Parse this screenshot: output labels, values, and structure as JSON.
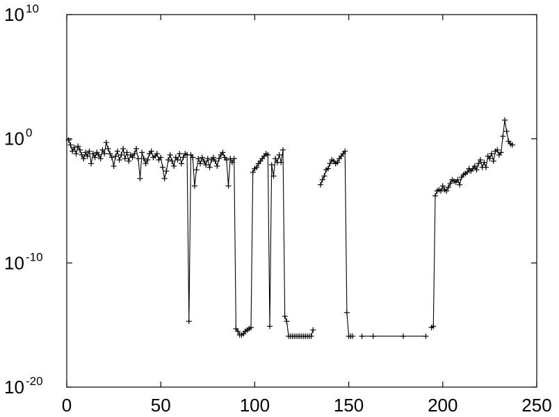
{
  "chart_data": {
    "type": "line",
    "title": "",
    "xlabel": "",
    "ylabel": "",
    "xlim": [
      0,
      250
    ],
    "ylim_exponent": [
      -20,
      10
    ],
    "y_scale": "log",
    "grid": false,
    "legend": "none",
    "marker": "+",
    "colors": {
      "line": "#000000",
      "axes": "#000000",
      "background": "#ffffff"
    },
    "x_ticks": [
      {
        "value": 0,
        "label": "0"
      },
      {
        "value": 50,
        "label": "50"
      },
      {
        "value": 100,
        "label": "100"
      },
      {
        "value": 150,
        "label": "150"
      },
      {
        "value": 200,
        "label": "200"
      },
      {
        "value": 250,
        "label": "250"
      }
    ],
    "y_ticks": [
      {
        "exponent": 10,
        "base": "10",
        "sup": "10"
      },
      {
        "exponent": 0,
        "base": "10",
        "sup": "0"
      },
      {
        "exponent": -10,
        "base": "10",
        "sup": "-10"
      },
      {
        "exponent": -20,
        "base": "10",
        "sup": "-20"
      }
    ],
    "series": [
      {
        "segments": [
          {
            "x": [
              1,
              2,
              3,
              4,
              5,
              6,
              7,
              8,
              9,
              10,
              11,
              12,
              13,
              14,
              15,
              16,
              17,
              18,
              19,
              20,
              21,
              22,
              23,
              24,
              25,
              26,
              27,
              28,
              29,
              30,
              31,
              32,
              33,
              34,
              35,
              36,
              37,
              38,
              39,
              40,
              41,
              42,
              43,
              44,
              45,
              46,
              47,
              48,
              49,
              50,
              51,
              52,
              53,
              54,
              55,
              56,
              57,
              58,
              59,
              60,
              61,
              62,
              63,
              64,
              65,
              66,
              67,
              68,
              69,
              70,
              71,
              72,
              73,
              74,
              75,
              76,
              77,
              78,
              79,
              80,
              81,
              82,
              83,
              84,
              85,
              86,
              87,
              88,
              89,
              90,
              91,
              92,
              93,
              94,
              95,
              96,
              97,
              98,
              99,
              100,
              101,
              102,
              103,
              104,
              105,
              106,
              107,
              108,
              109,
              110,
              111,
              112,
              113,
              114,
              115,
              116,
              117,
              118,
              119,
              120,
              121,
              122,
              123,
              124,
              125,
              126,
              127,
              128,
              129,
              130,
              131
            ],
            "log10_y": [
              -0.1,
              -0.5,
              -1.0,
              -0.7,
              -1.2,
              -0.6,
              -0.9,
              -1.3,
              -1.6,
              -1.1,
              -1.4,
              -1.0,
              -2.0,
              -1.2,
              -1.5,
              -1.1,
              -1.3,
              -1.6,
              -0.9,
              -1.2,
              -0.3,
              -0.8,
              -1.2,
              -1.5,
              -2.2,
              -1.4,
              -1.0,
              -1.7,
              -1.3,
              -0.8,
              -1.6,
              -1.1,
              -1.8,
              -1.3,
              -1.5,
              -1.2,
              -0.8,
              -1.6,
              -3.2,
              -1.1,
              -1.6,
              -2.0,
              -1.7,
              -1.2,
              -1.0,
              -1.5,
              -1.4,
              -1.2,
              -1.7,
              -1.5,
              -2.3,
              -3.2,
              -2.6,
              -1.7,
              -1.3,
              -1.8,
              -2.2,
              -1.5,
              -1.7,
              -1.2,
              -2.0,
              -1.5,
              -1.2,
              -1.3,
              -14.7,
              -1.3,
              -1.5,
              -3.8,
              -2.5,
              -1.6,
              -2.0,
              -1.5,
              -1.8,
              -2.1,
              -1.6,
              -2.3,
              -1.7,
              -1.5,
              -1.8,
              -2.2,
              -1.6,
              -1.3,
              -1.1,
              -1.5,
              -1.7,
              -3.8,
              -1.6,
              -1.9,
              -1.6,
              -15.3,
              -15.5,
              -15.8,
              -15.8,
              -15.7,
              -15.5,
              -15.4,
              -15.3,
              -15.2,
              -2.7,
              -2.4,
              -2.3,
              -2.0,
              -1.8,
              -1.6,
              -1.4,
              -1.2,
              -1.3,
              -15.1,
              -2.1,
              -3.0,
              -1.6,
              -1.9,
              -1.3,
              -1.9,
              -0.9,
              -14.3,
              -14.7,
              -15.9,
              -15.9,
              -15.9,
              -15.9,
              -15.9,
              -15.9,
              -15.9,
              -15.9,
              -15.9,
              -15.9,
              -15.9,
              -15.9,
              -15.9,
              -15.4
            ]
          },
          {
            "x": [
              135,
              136,
              137,
              138,
              139,
              140,
              141,
              142,
              143,
              144,
              145,
              146,
              147,
              148,
              149,
              150,
              151,
              152
            ],
            "log10_y": [
              -3.7,
              -3.3,
              -3.0,
              -2.5,
              -2.4,
              -2.0,
              -1.7,
              -1.8,
              -2.0,
              -1.9,
              -1.6,
              -1.4,
              -1.2,
              -1.0,
              -14.0,
              -15.9,
              -15.9,
              -15.9
            ]
          },
          {
            "x": [
              157,
              163,
              179,
              191
            ],
            "log10_y": [
              -15.9,
              -15.9,
              -15.9,
              -15.9
            ]
          },
          {
            "x": [
              194,
              195,
              196,
              197,
              198,
              199,
              200,
              201,
              202,
              203,
              204,
              205,
              206,
              207,
              208,
              209,
              210,
              211,
              212,
              213,
              214,
              215,
              216,
              217,
              218,
              219,
              220,
              221,
              222,
              223,
              224,
              225,
              226,
              227,
              228,
              229,
              230,
              231,
              232,
              233,
              234,
              235,
              236,
              237
            ],
            "log10_y": [
              -15.2,
              -15.1,
              -4.6,
              -4.2,
              -4.1,
              -4.2,
              -3.8,
              -4.1,
              -4.2,
              -3.9,
              -3.6,
              -3.3,
              -3.4,
              -3.5,
              -3.3,
              -3.7,
              -3.1,
              -2.9,
              -2.8,
              -2.7,
              -2.4,
              -2.6,
              -2.4,
              -2.2,
              -2.5,
              -2.0,
              -1.7,
              -2.3,
              -1.9,
              -2.3,
              -1.4,
              -1.6,
              -1.2,
              -1.8,
              -1.0,
              -0.9,
              -1.3,
              -1.1,
              0.2,
              1.5,
              0.6,
              -0.2,
              -0.4,
              -0.5
            ]
          }
        ]
      }
    ]
  }
}
